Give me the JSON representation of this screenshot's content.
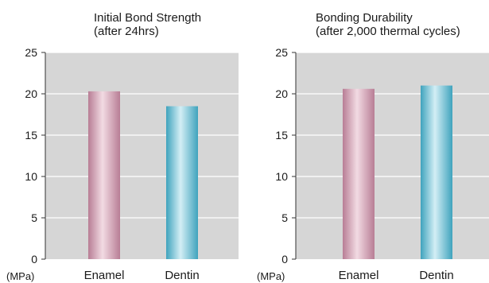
{
  "chart_data": [
    {
      "type": "bar",
      "title": [
        "Initial Bond Strength",
        "(after 24hrs)"
      ],
      "categories": [
        "Enamel",
        "Dentin"
      ],
      "values": [
        20.3,
        18.5
      ],
      "ylim": [
        0,
        25
      ],
      "yticks": [
        0,
        5,
        10,
        15,
        20,
        25
      ],
      "unit": "(MPa)",
      "grid": true
    },
    {
      "type": "bar",
      "title": [
        "Bonding Durability",
        "(after 2,000 thermal cycles)"
      ],
      "categories": [
        "Enamel",
        "Dentin"
      ],
      "values": [
        20.6,
        21.0
      ],
      "ylim": [
        0,
        25
      ],
      "yticks": [
        0,
        5,
        10,
        15,
        20,
        25
      ],
      "unit": "(MPa)",
      "grid": true
    }
  ],
  "colors": {
    "plot_background": "#d6d6d6",
    "gridline": "#ffffff",
    "enamel_bar": "#d9a0b4",
    "dentin_bar": "#7cc4d6"
  }
}
